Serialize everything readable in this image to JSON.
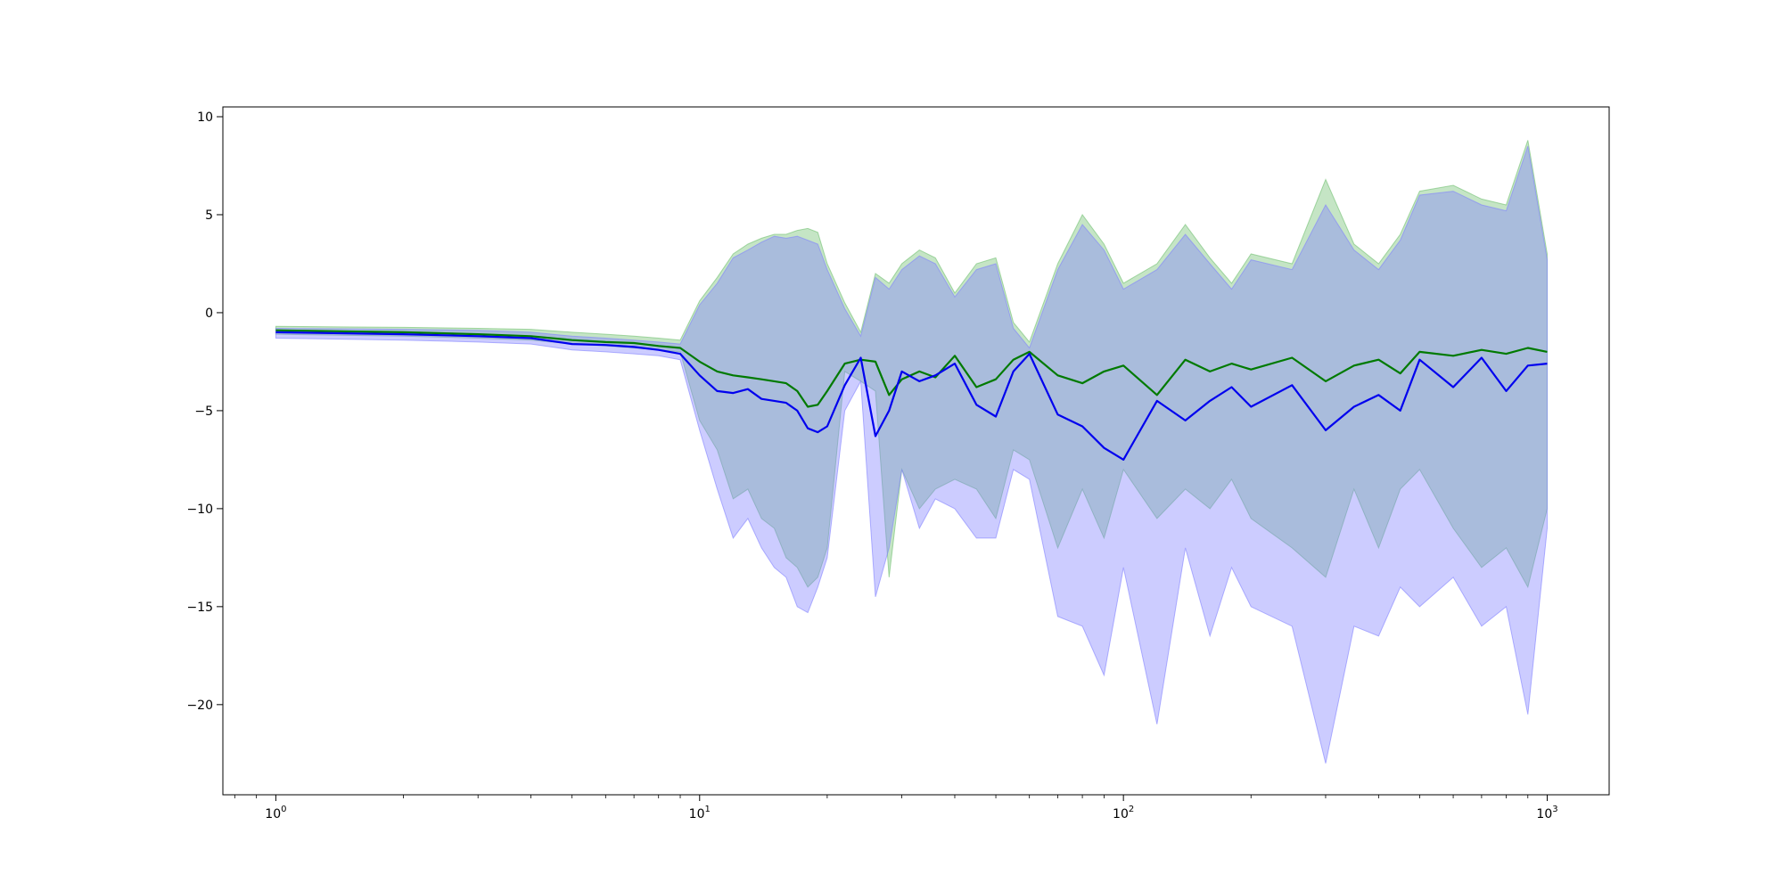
{
  "chart_data": {
    "type": "line",
    "title": "",
    "xlabel": "",
    "ylabel": "",
    "xscale": "log",
    "xlim": [
      0.75,
      1400
    ],
    "ylim": [
      -24.6,
      10.5
    ],
    "grid": false,
    "legend": "none",
    "x_ticks": [
      {
        "base": "10",
        "exp": "0",
        "value": 1
      },
      {
        "base": "10",
        "exp": "1",
        "value": 10
      },
      {
        "base": "10",
        "exp": "2",
        "value": 100
      },
      {
        "base": "10",
        "exp": "3",
        "value": 1000
      }
    ],
    "y_ticks": [
      {
        "label": "10",
        "value": 10
      },
      {
        "label": "5",
        "value": 5
      },
      {
        "label": "0",
        "value": 0
      },
      {
        "label": "−5",
        "value": -5
      },
      {
        "label": "−10",
        "value": -10
      },
      {
        "label": "−15",
        "value": -15
      },
      {
        "label": "−20",
        "value": -20
      }
    ],
    "series": [
      {
        "color": "#007a00",
        "band_color": "#6fbf6f",
        "x": [
          1,
          2,
          3,
          4,
          5,
          6,
          7,
          8,
          9,
          10,
          11,
          12,
          13,
          14,
          15,
          16,
          17,
          18,
          19,
          20,
          22,
          24,
          26,
          28,
          30,
          33,
          36,
          40,
          45,
          50,
          55,
          60,
          70,
          80,
          90,
          100,
          120,
          140,
          160,
          180,
          200,
          250,
          300,
          350,
          400,
          450,
          500,
          600,
          700,
          800,
          900,
          1000
        ],
        "values": [
          -0.9,
          -1.0,
          -1.1,
          -1.2,
          -1.4,
          -1.5,
          -1.55,
          -1.7,
          -1.8,
          -2.5,
          -3.0,
          -3.2,
          -3.3,
          -3.4,
          -3.5,
          -3.6,
          -4.0,
          -4.8,
          -4.7,
          -4.0,
          -2.6,
          -2.4,
          -2.5,
          -4.2,
          -3.4,
          -3.0,
          -3.3,
          -2.2,
          -3.8,
          -3.4,
          -2.4,
          -2.0,
          -3.2,
          -3.6,
          -3.0,
          -2.7,
          -4.2,
          -2.4,
          -3.0,
          -2.6,
          -2.9,
          -2.3,
          -3.5,
          -2.7,
          -2.4,
          -3.1,
          -2.0,
          -2.2,
          -1.9,
          -2.1,
          -1.8,
          -2.0
        ],
        "lower": [
          -1.1,
          -1.2,
          -1.3,
          -1.4,
          -1.6,
          -1.7,
          -1.8,
          -1.9,
          -2.0,
          -5.5,
          -7.0,
          -9.5,
          -9.0,
          -10.5,
          -11.0,
          -12.5,
          -13.0,
          -14.0,
          -13.5,
          -12.0,
          -3.0,
          -3.5,
          -4.0,
          -13.5,
          -8.0,
          -10.0,
          -9.0,
          -8.5,
          -9.0,
          -10.5,
          -7.0,
          -7.5,
          -12.0,
          -9.0,
          -11.5,
          -8.0,
          -10.5,
          -9.0,
          -10.0,
          -8.5,
          -10.5,
          -12.0,
          -13.5,
          -9.0,
          -12.0,
          -9.0,
          -8.0,
          -11.0,
          -13.0,
          -12.0,
          -14.0,
          -10.0
        ],
        "upper": [
          -0.7,
          -0.75,
          -0.8,
          -0.85,
          -1.0,
          -1.1,
          -1.2,
          -1.3,
          -1.4,
          0.6,
          1.8,
          3.0,
          3.5,
          3.8,
          4.0,
          4.0,
          4.2,
          4.3,
          4.1,
          2.5,
          0.5,
          -1.0,
          2.0,
          1.5,
          2.5,
          3.2,
          2.8,
          1.0,
          2.5,
          2.8,
          -0.5,
          -1.5,
          2.5,
          5.0,
          3.5,
          1.5,
          2.5,
          4.5,
          2.8,
          1.5,
          3.0,
          2.5,
          6.8,
          3.5,
          2.5,
          4.0,
          6.2,
          6.5,
          5.8,
          5.5,
          8.8,
          3.0
        ]
      },
      {
        "color": "#0000ee",
        "band_color": "#8080ff",
        "x": [
          1,
          2,
          3,
          4,
          5,
          6,
          7,
          8,
          9,
          10,
          11,
          12,
          13,
          14,
          15,
          16,
          17,
          18,
          19,
          20,
          22,
          24,
          26,
          28,
          30,
          33,
          36,
          40,
          45,
          50,
          55,
          60,
          70,
          80,
          90,
          100,
          120,
          140,
          160,
          180,
          200,
          250,
          300,
          350,
          400,
          450,
          500,
          600,
          700,
          800,
          900,
          1000
        ],
        "values": [
          -1.0,
          -1.1,
          -1.2,
          -1.3,
          -1.6,
          -1.65,
          -1.75,
          -1.9,
          -2.1,
          -3.2,
          -4.0,
          -4.1,
          -3.9,
          -4.4,
          -4.5,
          -4.6,
          -5.0,
          -5.9,
          -6.1,
          -5.8,
          -3.7,
          -2.3,
          -6.3,
          -5.0,
          -3.0,
          -3.5,
          -3.2,
          -2.6,
          -4.7,
          -5.3,
          -3.0,
          -2.1,
          -5.2,
          -5.8,
          -6.9,
          -7.5,
          -4.5,
          -5.5,
          -4.5,
          -3.8,
          -4.8,
          -3.7,
          -6.0,
          -4.8,
          -4.2,
          -5.0,
          -2.4,
          -3.8,
          -2.3,
          -4.0,
          -2.7,
          -2.6
        ],
        "lower": [
          -1.3,
          -1.4,
          -1.5,
          -1.6,
          -1.9,
          -2.0,
          -2.1,
          -2.2,
          -2.4,
          -6.0,
          -9.0,
          -11.5,
          -10.5,
          -12.0,
          -13.0,
          -13.5,
          -15.0,
          -15.3,
          -14.0,
          -12.5,
          -5.0,
          -3.5,
          -14.5,
          -12.0,
          -8.0,
          -11.0,
          -9.5,
          -10.0,
          -11.5,
          -11.5,
          -8.0,
          -8.5,
          -15.5,
          -16.0,
          -18.5,
          -13.0,
          -21.0,
          -12.0,
          -16.5,
          -13.0,
          -15.0,
          -16.0,
          -23.0,
          -16.0,
          -16.5,
          -14.0,
          -15.0,
          -13.5,
          -16.0,
          -15.0,
          -20.5,
          -11.0
        ],
        "upper": [
          -0.8,
          -0.85,
          -0.9,
          -1.0,
          -1.2,
          -1.3,
          -1.4,
          -1.5,
          -1.6,
          0.4,
          1.5,
          2.8,
          3.2,
          3.6,
          3.9,
          3.8,
          3.9,
          3.7,
          3.5,
          2.2,
          0.2,
          -1.2,
          1.8,
          1.2,
          2.2,
          2.9,
          2.5,
          0.8,
          2.2,
          2.5,
          -0.8,
          -1.8,
          2.2,
          4.5,
          3.2,
          1.2,
          2.2,
          4.0,
          2.5,
          1.2,
          2.7,
          2.2,
          5.5,
          3.2,
          2.2,
          3.7,
          6.0,
          6.2,
          5.5,
          5.2,
          8.5,
          2.7
        ]
      }
    ]
  }
}
